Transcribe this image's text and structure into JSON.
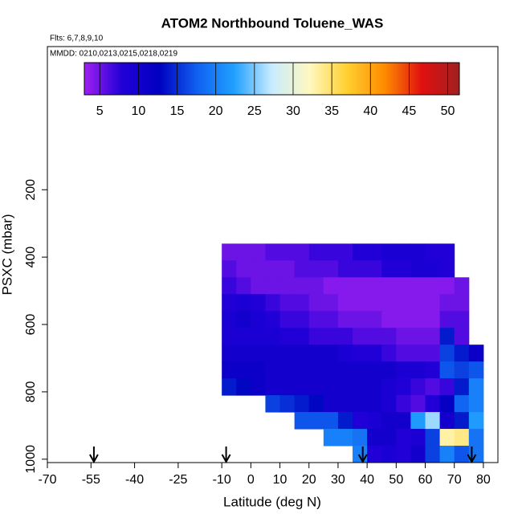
{
  "chart_data": {
    "type": "heatmap",
    "title": "ATOM2 Northbound Toluene_WAS",
    "flights": "Flts: 6,7,8,9,10",
    "dates": "MMDD: 0210,0213,0215,0218,0219",
    "x_label": "Latitude (deg N)",
    "y_label": "PSXC (mbar)",
    "xlim": [
      -70,
      85
    ],
    "xticks": [
      -70,
      -55,
      -40,
      -25,
      -10,
      0,
      10,
      20,
      30,
      40,
      50,
      60,
      70,
      80
    ],
    "ylim": [
      1010,
      -225
    ],
    "yticks": [
      200,
      400,
      600,
      800,
      1000
    ],
    "x_edges": [
      -10,
      -5,
      0,
      5,
      10,
      15,
      20,
      25,
      30,
      35,
      40,
      45,
      50,
      55,
      60,
      65,
      70,
      75,
      80
    ],
    "y_edges": [
      360,
      410,
      460,
      510,
      560,
      610,
      660,
      710,
      760,
      810,
      860,
      910,
      960,
      1010
    ],
    "z": [
      [
        5,
        5,
        5,
        6,
        6,
        6,
        7,
        7,
        7,
        8,
        8,
        9,
        9,
        9,
        8,
        8,
        null,
        null
      ],
      [
        6,
        5,
        5,
        5,
        5,
        6,
        6,
        6,
        7,
        7,
        7,
        8,
        8,
        9,
        9,
        8,
        null,
        null
      ],
      [
        7,
        6,
        5,
        5,
        5,
        5,
        5,
        4,
        4,
        4,
        4,
        4,
        4,
        4,
        4,
        4,
        5,
        null
      ],
      [
        8,
        9,
        8,
        7,
        6,
        6,
        5,
        5,
        4,
        4,
        4,
        4,
        4,
        4,
        4,
        5,
        5,
        null
      ],
      [
        9,
        10,
        9,
        8,
        7,
        7,
        6,
        6,
        5,
        5,
        5,
        4,
        4,
        4,
        4,
        6,
        6,
        null
      ],
      [
        9,
        9,
        9,
        9,
        8,
        8,
        7,
        7,
        7,
        6,
        6,
        6,
        5,
        5,
        5,
        14,
        6,
        null
      ],
      [
        10,
        10,
        10,
        10,
        10,
        10,
        10,
        10,
        9,
        8,
        8,
        7,
        6,
        6,
        6,
        16,
        14,
        11
      ],
      [
        11,
        11,
        11,
        10,
        10,
        10,
        10,
        10,
        10,
        10,
        10,
        10,
        9,
        9,
        8,
        17,
        16,
        17
      ],
      [
        14,
        13,
        11,
        10,
        10,
        10,
        10,
        10,
        10,
        10,
        10,
        9,
        8,
        7,
        6,
        7,
        14,
        20
      ],
      [
        null,
        null,
        null,
        16,
        15,
        14,
        13,
        10,
        10,
        10,
        10,
        9,
        7,
        6,
        8,
        12,
        18,
        20
      ],
      [
        null,
        null,
        null,
        null,
        null,
        17,
        17,
        17,
        14,
        8,
        9,
        10,
        10,
        22,
        26,
        10,
        14,
        22
      ],
      [
        null,
        null,
        null,
        null,
        null,
        null,
        null,
        20,
        20,
        19,
        10,
        10,
        8,
        9,
        16,
        33,
        34,
        19
      ],
      [
        null,
        null,
        null,
        null,
        null,
        null,
        null,
        null,
        null,
        20,
        8,
        9,
        8,
        10,
        16,
        20,
        17,
        19
      ]
    ],
    "clim": [
      3,
      51.5
    ],
    "cticks": [
      5,
      10,
      15,
      20,
      25,
      30,
      35,
      40,
      45,
      50
    ],
    "colors": [
      "#a020f0",
      "#2200d8",
      "#0000c0",
      "#1060f0",
      "#20a0ff",
      "#c8ecff",
      "#fff8c0",
      "#ffd030",
      "#ff8c00",
      "#e01010",
      "#a02020"
    ],
    "arrows": [
      -54,
      -8.5,
      38.5,
      76
    ]
  }
}
